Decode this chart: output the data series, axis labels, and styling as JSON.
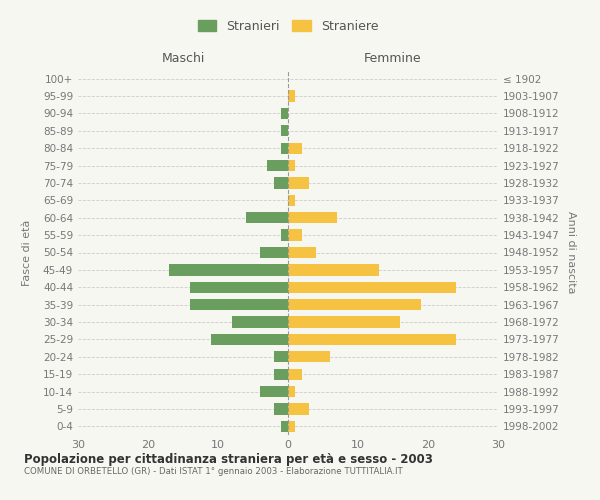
{
  "age_groups": [
    "0-4",
    "5-9",
    "10-14",
    "15-19",
    "20-24",
    "25-29",
    "30-34",
    "35-39",
    "40-44",
    "45-49",
    "50-54",
    "55-59",
    "60-64",
    "65-69",
    "70-74",
    "75-79",
    "80-84",
    "85-89",
    "90-94",
    "95-99",
    "100+"
  ],
  "birth_years": [
    "1998-2002",
    "1993-1997",
    "1988-1992",
    "1983-1987",
    "1978-1982",
    "1973-1977",
    "1968-1972",
    "1963-1967",
    "1958-1962",
    "1953-1957",
    "1948-1952",
    "1943-1947",
    "1938-1942",
    "1933-1937",
    "1928-1932",
    "1923-1927",
    "1918-1922",
    "1913-1917",
    "1908-1912",
    "1903-1907",
    "≤ 1902"
  ],
  "maschi": [
    1,
    2,
    4,
    2,
    2,
    11,
    8,
    14,
    14,
    17,
    4,
    1,
    6,
    0,
    2,
    3,
    1,
    1,
    1,
    0,
    0
  ],
  "femmine": [
    1,
    3,
    1,
    2,
    6,
    24,
    16,
    19,
    24,
    13,
    4,
    2,
    7,
    1,
    3,
    1,
    2,
    0,
    0,
    1,
    0
  ],
  "color_maschi": "#6a9e5e",
  "color_femmine": "#f5c242",
  "xlim": 30,
  "title": "Popolazione per cittadinanza straniera per età e sesso - 2003",
  "subtitle": "COMUNE DI ORBETELLO (GR) - Dati ISTAT 1° gennaio 2003 - Elaborazione TUTTITALIA.IT",
  "ylabel_left": "Fasce di età",
  "ylabel_right": "Anni di nascita",
  "header_left": "Maschi",
  "header_right": "Femmine",
  "legend_maschi": "Stranieri",
  "legend_femmine": "Straniere",
  "background_color": "#f7f7f2",
  "grid_color": "#cccccc"
}
